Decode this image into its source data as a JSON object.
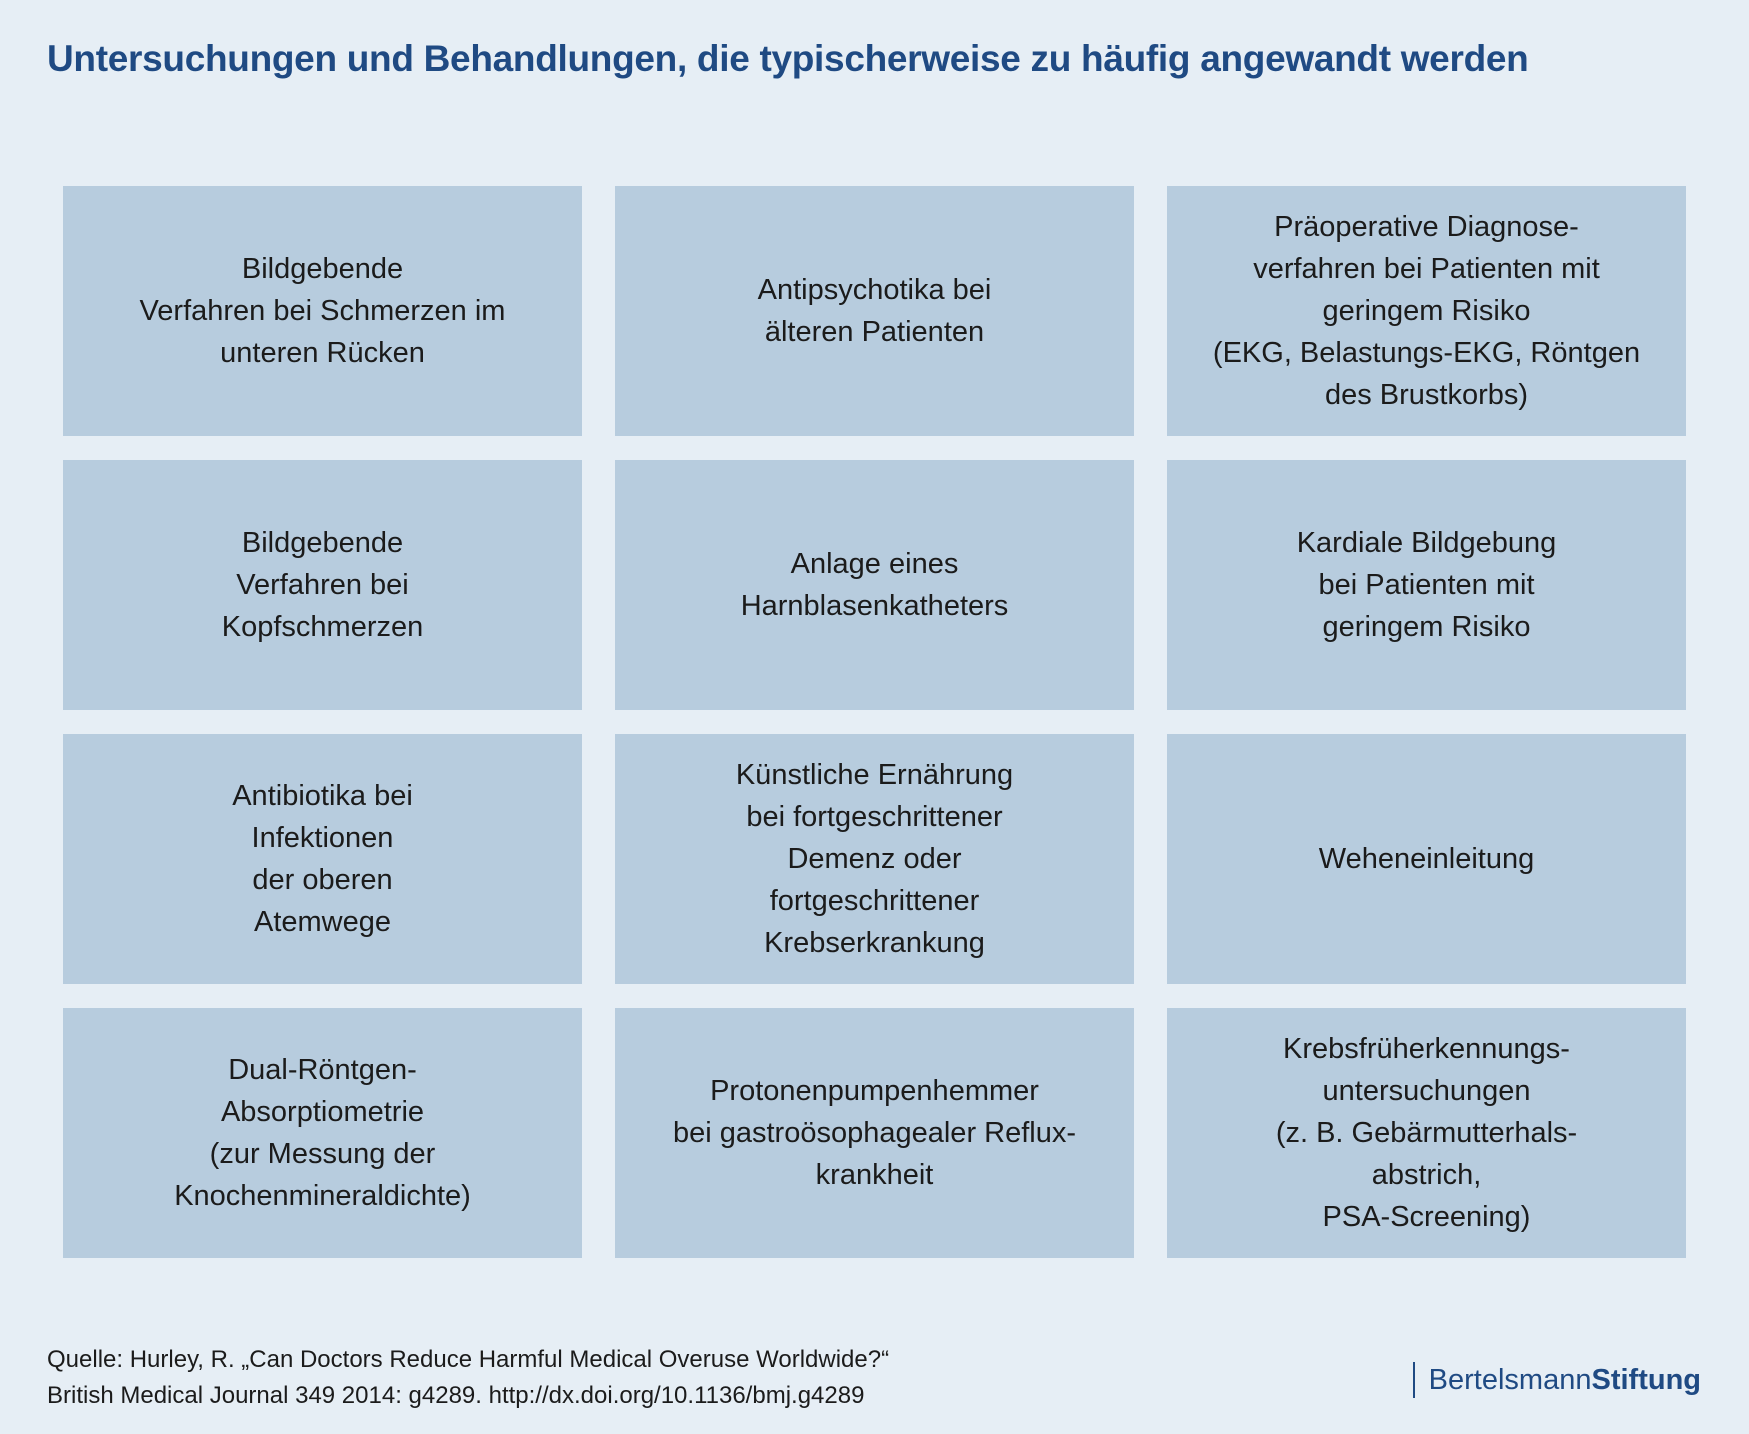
{
  "title": "Untersuchungen und Behandlungen, die typischerweise zu häufig angewandt werden",
  "cells": [
    "Bildgebende\nVerfahren bei Schmerzen im\nunteren Rücken",
    "Antipsychotika bei\nälteren Patienten",
    "Präoperative Diagnose-\nverfahren bei Patienten mit\ngeringem Risiko\n(EKG, Belastungs-EKG, Röntgen\ndes Brustkorbs)",
    "Bildgebende\nVerfahren bei\nKopfschmerzen",
    "Anlage eines\nHarnblasenkatheters",
    "Kardiale Bildgebung\nbei Patienten mit\ngeringem Risiko",
    "Antibiotika bei\nInfektionen\nder oberen\nAtemwege",
    "Künstliche Ernährung\nbei fortgeschrittener\nDemenz oder\nfortgeschrittener\nKrebserkrankung",
    "Weheneinleitung",
    "Dual-Röntgen-\nAbsorptiometrie\n(zur Messung der\nKnochenmineraldichte)",
    "Protonenpumpenhemmer\nbei gastroösophagealer Reflux-\nkrankheit",
    "Krebsfrüherkennungs-\nuntersuchungen\n(z. B. Gebärmutterhals-\nabstrich,\nPSA-Screening)"
  ],
  "source": {
    "line1": "Quelle: Hurley, R. „Can Doctors Reduce Harmful Medical Overuse Worldwide?“",
    "line2": "British Medical Journal 349 2014: g4289. http://dx.doi.org/10.1136/bmj.g4289"
  },
  "logo": {
    "part1": "Bertelsmann",
    "part2": "Stiftung"
  },
  "colors": {
    "background": "#e6eef5",
    "tile": "#b7ccde",
    "title": "#1f4a83"
  }
}
